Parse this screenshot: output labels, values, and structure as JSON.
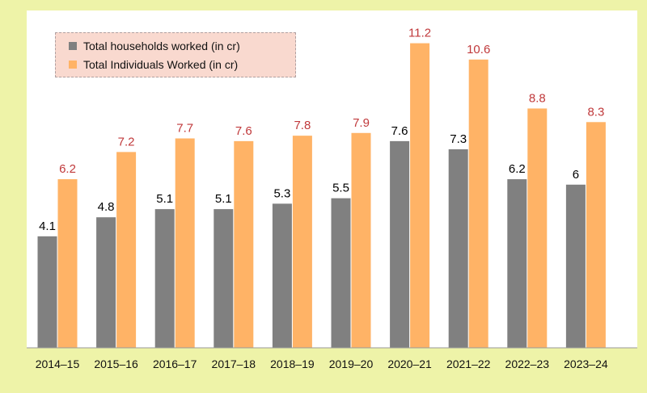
{
  "chart_data": {
    "type": "bar",
    "categories": [
      "2014–15",
      "2015–16",
      "2016–17",
      "2017–18",
      "2018–19",
      "2019–20",
      "2020–21",
      "2021–22",
      "2022–23",
      "2023–24"
    ],
    "series": [
      {
        "name": "Total households worked (in cr)",
        "color": "#808080",
        "label_color": "#000000",
        "values": [
          4.1,
          4.8,
          5.1,
          5.1,
          5.3,
          5.5,
          7.6,
          7.3,
          6.2,
          6
        ],
        "labels": [
          "4.1",
          "4.8",
          "5.1",
          "5.1",
          "5.3",
          "5.5",
          "7.6",
          "7.3",
          "6.2",
          "6"
        ]
      },
      {
        "name": "Total Individuals Worked (in cr)",
        "color": "#ffb366",
        "label_color": "#c0393b",
        "values": [
          6.2,
          7.2,
          7.7,
          7.6,
          7.8,
          7.9,
          11.2,
          10.6,
          8.8,
          8.3
        ],
        "labels": [
          "6.2",
          "7.2",
          "7.7",
          "7.6",
          "7.8",
          "7.9",
          "11.2",
          "10.6",
          "8.8",
          "8.3"
        ]
      }
    ],
    "title": "",
    "xlabel": "",
    "ylabel": "",
    "ylim": [
      0,
      12
    ],
    "grid": false,
    "legend": "top-left",
    "background": "#eef3a8",
    "plot_background": "#ffffff"
  }
}
